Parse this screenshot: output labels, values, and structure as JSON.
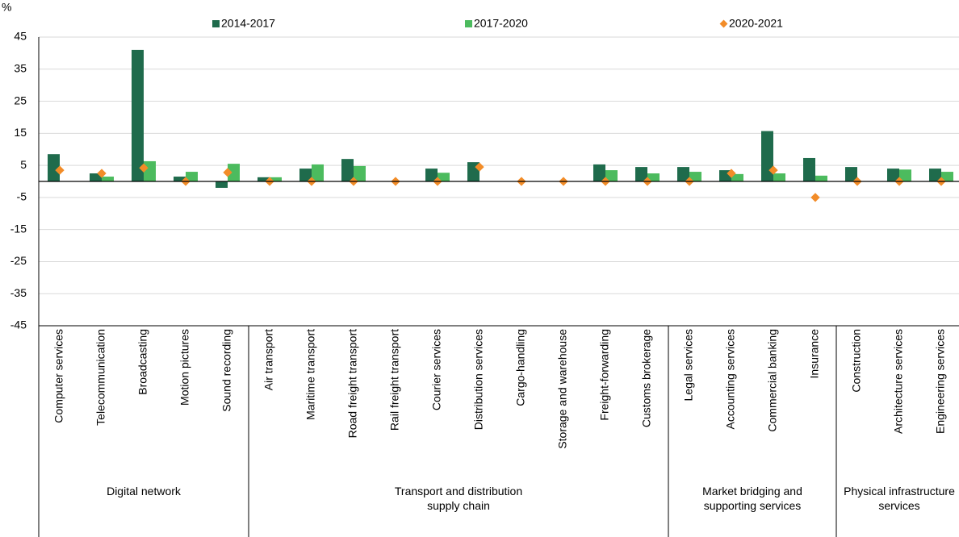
{
  "chart_data": {
    "type": "bar",
    "y_label": "%",
    "categories": [
      "Computer services",
      "Telecommunication",
      "Broadcasting",
      "Motion pictures",
      "Sound recording",
      "Air transport",
      "Maritime transport",
      "Road freight transport",
      "Rail freight transport",
      "Courier services",
      "Distribution services",
      "Cargo-handling",
      "Storage and warehouse",
      "Freight-forwarding",
      "Customs brokerage",
      "Legal services",
      "Accounting services",
      "Commercial banking",
      "Insurance",
      "Construction",
      "Architecture services",
      "Engineering services"
    ],
    "groups": [
      {
        "label": "Digital network",
        "span": 5
      },
      {
        "label": "Transport and distribution supply chain",
        "span": 10
      },
      {
        "label": "Market bridging and supporting services",
        "span": 4
      },
      {
        "label": "Physical infrastructure services",
        "span": 3
      }
    ],
    "series": [
      {
        "name": "2014-2017",
        "color": "#1f6b4c",
        "mark": "bar",
        "values": [
          8.5,
          2.5,
          41,
          1.5,
          -2,
          1.3,
          4,
          7,
          0,
          4,
          6,
          0,
          0,
          5.3,
          4.5,
          4.5,
          3.5,
          15.7,
          7.3,
          4.5,
          4,
          4
        ]
      },
      {
        "name": "2017-2020",
        "color": "#4cbb5e",
        "mark": "bar",
        "values": [
          0,
          1.5,
          6.3,
          3,
          5.5,
          1.3,
          5.3,
          4.8,
          0,
          2.7,
          0,
          0,
          0,
          3.5,
          2.5,
          3,
          2.3,
          2.5,
          1.8,
          0,
          3.7,
          3
        ]
      },
      {
        "name": "2020-2021",
        "color": "#f28c28",
        "mark": "diamond",
        "values": [
          3.5,
          2.5,
          4.2,
          0,
          2.8,
          0,
          0,
          0,
          0,
          0,
          4.5,
          0,
          0,
          0,
          0,
          0,
          2.5,
          3.5,
          -5,
          0,
          0,
          0
        ]
      }
    ],
    "ylim": [
      -45,
      45
    ],
    "yticks": [
      -45,
      -35,
      -25,
      -15,
      -5,
      5,
      15,
      25,
      35,
      45
    ],
    "grid": true
  }
}
